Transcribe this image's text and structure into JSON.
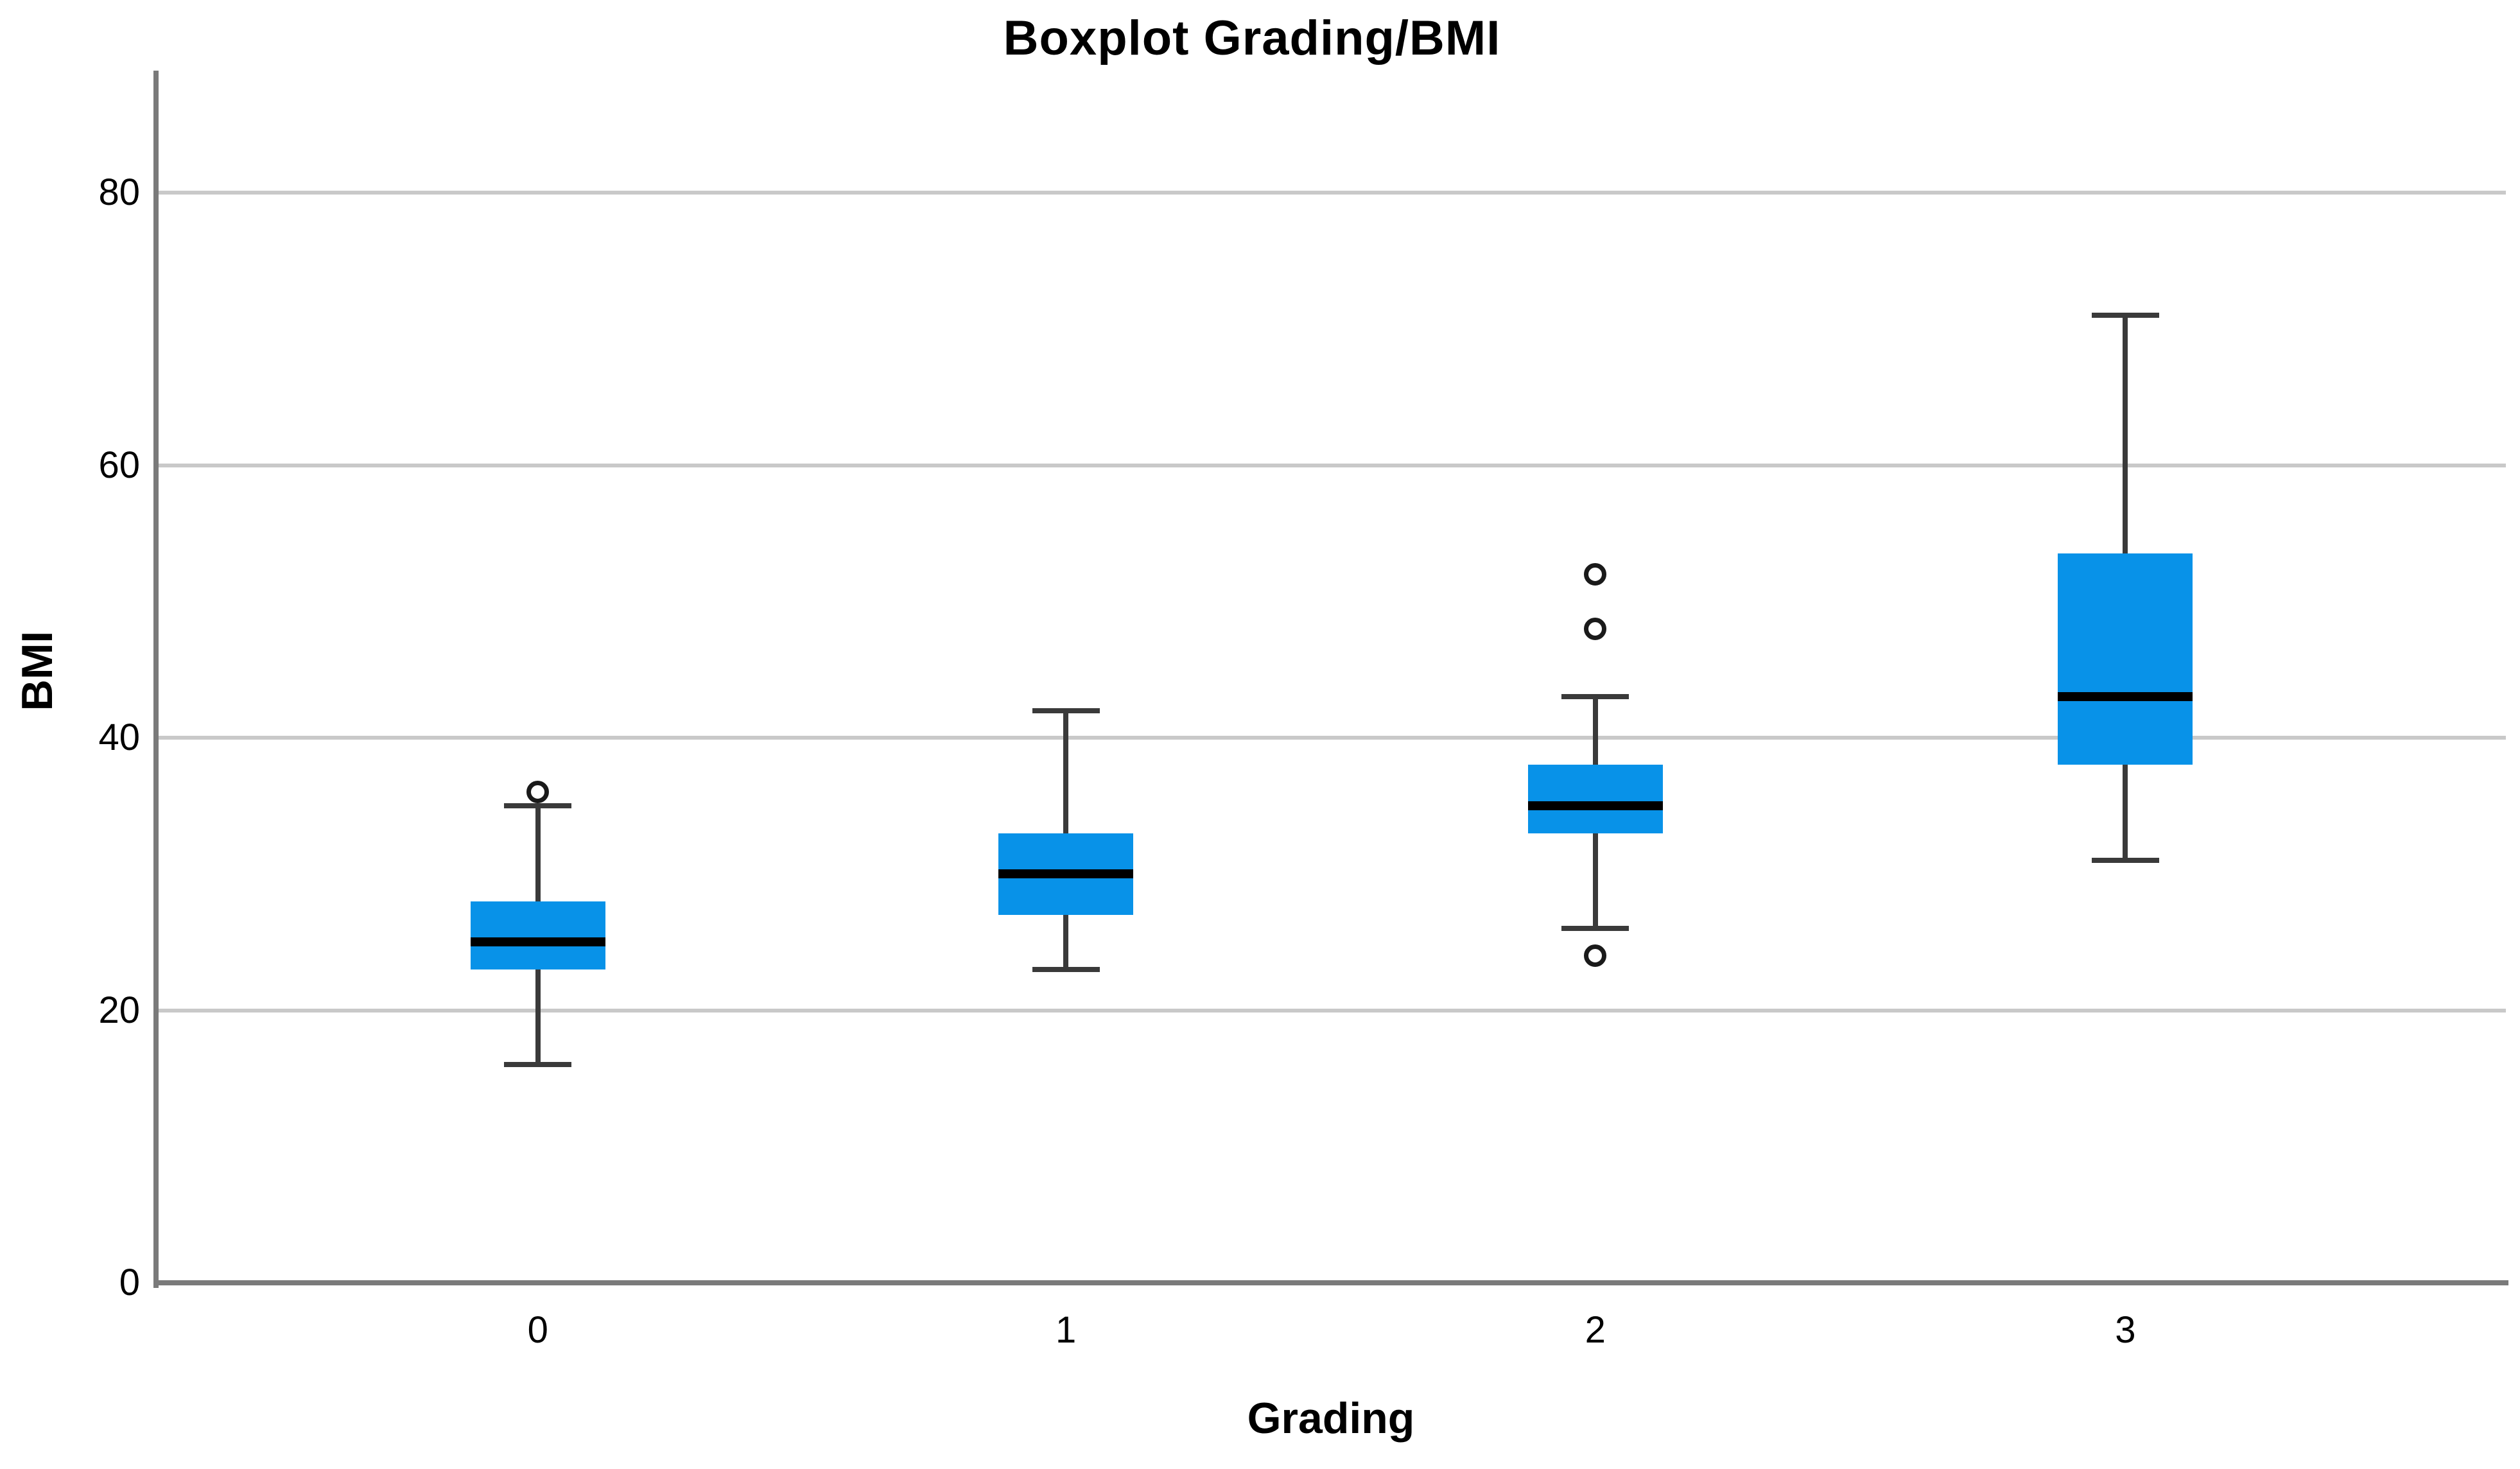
{
  "title": "Boxplot Grading/BMI",
  "chart_data": {
    "type": "boxplot",
    "title": "Boxplot Grading/BMI",
    "xlabel": "Grading",
    "ylabel": "BMI",
    "categories": [
      "0",
      "1",
      "2",
      "3"
    ],
    "y_ticks": [
      0,
      20,
      40,
      60,
      80
    ],
    "ylim": [
      0,
      89
    ],
    "grid": "horizontal-only",
    "legend": "none",
    "series": [
      {
        "category": "0",
        "whisker_low": 16,
        "q1": 23,
        "median": 25,
        "q3": 28,
        "whisker_high": 35,
        "outliers": [
          36
        ]
      },
      {
        "category": "1",
        "whisker_low": 23,
        "q1": 27,
        "median": 30,
        "q3": 33,
        "whisker_high": 42,
        "outliers": []
      },
      {
        "category": "2",
        "whisker_low": 26,
        "q1": 33,
        "median": 35,
        "q3": 38,
        "whisker_high": 43,
        "outliers": [
          24,
          48,
          52
        ]
      },
      {
        "category": "3",
        "whisker_low": 31,
        "q1": 38,
        "median": 43,
        "q3": 53.5,
        "whisker_high": 71,
        "outliers": []
      }
    ],
    "colors": {
      "box_fill": "#0892e8",
      "median_line": "#000000",
      "whisker": "#3a3a3a",
      "outlier_stroke": "#1a1a1a",
      "axis_line": "#7a7a7a",
      "gridline": "#c9c9c9",
      "text": "#000000",
      "background": "#ffffff"
    }
  }
}
